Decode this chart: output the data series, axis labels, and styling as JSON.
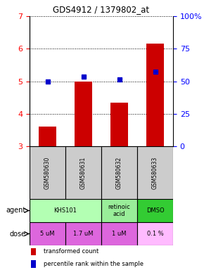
{
  "title": "GDS4912 / 1379802_at",
  "samples": [
    "GSM580630",
    "GSM580631",
    "GSM580632",
    "GSM580633"
  ],
  "bar_values": [
    3.6,
    5.0,
    4.35,
    6.15
  ],
  "dot_values": [
    5.0,
    5.15,
    5.05,
    5.3
  ],
  "ylim": [
    3,
    7
  ],
  "yticks_left": [
    3,
    4,
    5,
    6,
    7
  ],
  "yticks_right": [
    0,
    25,
    50,
    75,
    100
  ],
  "bar_color": "#cc0000",
  "dot_color": "#0000cc",
  "agent_spans": [
    {
      "start": 0,
      "end": 2,
      "label": "KHS101",
      "color": "#b3ffb3"
    },
    {
      "start": 2,
      "end": 3,
      "label": "retinoic\nacid",
      "color": "#99ee99"
    },
    {
      "start": 3,
      "end": 4,
      "label": "DMSO",
      "color": "#33cc33"
    }
  ],
  "doses": [
    "5 uM",
    "1.7 uM",
    "1 uM",
    "0.1 %"
  ],
  "dose_colors": [
    "#dd66dd",
    "#dd66dd",
    "#dd66dd",
    "#ffbbff"
  ],
  "sample_bg": "#cccccc",
  "legend_bar_label": "transformed count",
  "legend_dot_label": "percentile rank within the sample"
}
